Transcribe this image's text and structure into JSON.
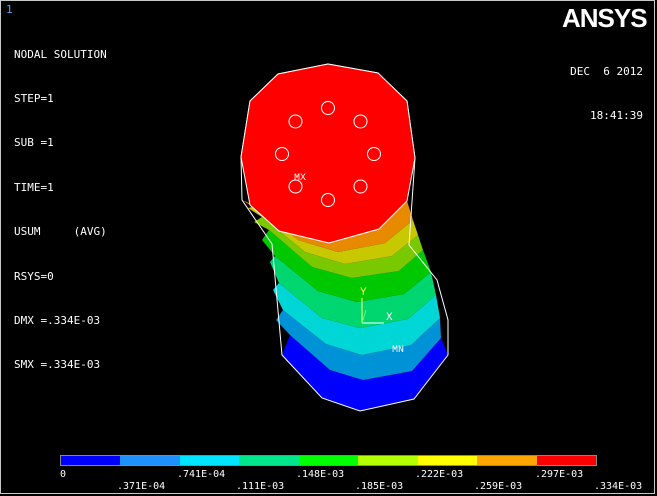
{
  "window_number": "1",
  "result": {
    "title": "NODAL SOLUTION",
    "lines": [
      "STEP=1",
      "SUB =1",
      "TIME=1",
      "USUM     (AVG)",
      "RSYS=0",
      "DMX =.334E-03",
      "SMX =.334E-03"
    ]
  },
  "brand": {
    "logo": "ANSYS"
  },
  "timestamp": {
    "date": "DEC  6 2012",
    "time": "18:41:39"
  },
  "model": {
    "max_label": "MX",
    "min_label": "MN",
    "axis_x": "X",
    "axis_y": "Y",
    "band_colors": [
      "#0000ff",
      "#0092d6",
      "#00d6d6",
      "#00d670",
      "#00c800",
      "#7ac800",
      "#c8c800",
      "#e88a00",
      "#ff0000"
    ],
    "top_face_color": "#ff0000",
    "bolt_hole_count": 8
  },
  "legend": {
    "colors": [
      "#0000ff",
      "#1e90ff",
      "#00e5ff",
      "#00e68c",
      "#00ff00",
      "#b4ff00",
      "#ffff00",
      "#ffa500",
      "#ff0000"
    ],
    "labels_top": [
      "0",
      ".741E-04",
      ".148E-03",
      ".222E-03",
      ".297E-03"
    ],
    "labels_bottom": [
      ".371E-04",
      ".111E-03",
      ".185E-03",
      ".259E-03",
      ".334E-03"
    ]
  }
}
